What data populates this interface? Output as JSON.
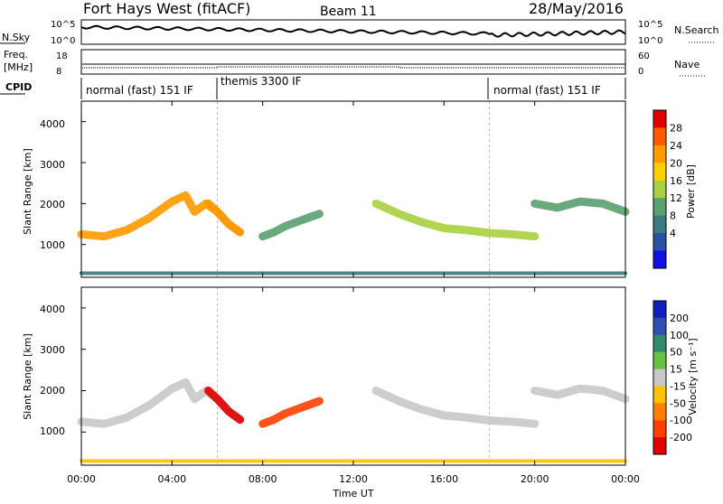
{
  "header": {
    "radar": "Fort Hays West (fitACF)",
    "beam": "Beam 11",
    "date": "28/May/2016"
  },
  "time_axis": {
    "ticks": [
      "00:00",
      "04:00",
      "08:00",
      "12:00",
      "16:00",
      "20:00",
      "00:00"
    ],
    "label": "Time UT"
  },
  "noise_panel": {
    "left_label": "N.Sky",
    "right_label": "N.Search",
    "left_ticks": [
      "10^5",
      "10^0"
    ],
    "right_ticks": [
      "10^5",
      "10^0"
    ]
  },
  "freq_panel": {
    "left_label": "Freq.",
    "left_unit": "[MHz]",
    "left_ticks": [
      "18",
      "8"
    ],
    "right_label": "Nave",
    "right_ticks": [
      "60",
      "0"
    ]
  },
  "cpid": {
    "label": "CPID",
    "segments": [
      "normal (fast) 151 IF",
      "themis 3300 IF",
      "normal (fast) 151 IF"
    ]
  },
  "power_panel": {
    "ylabel": "Slant Range [km]",
    "yticks": [
      "4000",
      "3000",
      "2000",
      "1000"
    ],
    "colorbar_label": "Power [dB]",
    "colorbar_ticks": [
      "28",
      "24",
      "20",
      "16",
      "12",
      "8",
      "4"
    ],
    "colorbar_colors": [
      "#e00000",
      "#ff5a00",
      "#ff9a00",
      "#ffd000",
      "#a8d040",
      "#5aa070",
      "#3a7a80",
      "#2a50a8",
      "#1010e0"
    ]
  },
  "velocity_panel": {
    "ylabel": "Slant Range [km]",
    "yticks": [
      "4000",
      "3000",
      "2000",
      "1000"
    ],
    "colorbar_label": "Velocity [m s⁻¹]",
    "colorbar_ticks": [
      "200",
      "100",
      "50",
      "15",
      "-15",
      "-50",
      "-100",
      "-200"
    ],
    "colorbar_colors": [
      "#1020c0",
      "#3050b0",
      "#2f8a70",
      "#6ac040",
      "#c8c8c8",
      "#ffc000",
      "#ff8000",
      "#ff4000",
      "#e00000"
    ]
  },
  "chart_data": {
    "type": "heatmap",
    "time_range_hours": [
      0,
      24
    ],
    "range_km": [
      200,
      4500
    ],
    "cpid_switch_times": [
      "06:00",
      "18:00"
    ],
    "echo_bands": [
      {
        "name": "ionospheric band 1",
        "t": [
          0,
          1,
          2,
          3,
          4,
          4.6,
          5,
          5.5,
          6,
          6.5,
          7
        ],
        "r": [
          1250,
          1200,
          1350,
          1650,
          2050,
          2200,
          1800,
          2000,
          1800,
          1500,
          1300
        ],
        "power_db": 20,
        "velocity": 0
      },
      {
        "name": "negative velocity patch",
        "t": [
          5.6,
          6,
          6.5,
          7
        ],
        "r": [
          2000,
          1800,
          1500,
          1300
        ],
        "power_db": 22,
        "velocity": -200
      },
      {
        "name": "ionospheric band 2",
        "t": [
          8,
          8.5,
          9,
          9.5,
          10,
          10.5
        ],
        "r": [
          1200,
          1300,
          1450,
          1550,
          1650,
          1750
        ],
        "power_db": 8,
        "velocity": -100
      },
      {
        "name": "ionospheric band 3",
        "t": [
          13,
          14,
          15,
          16,
          17,
          18,
          19,
          20
        ],
        "r": [
          2000,
          1750,
          1550,
          1400,
          1350,
          1280,
          1250,
          1200
        ],
        "power_db": 12,
        "velocity": 0
      },
      {
        "name": "ionospheric band 4",
        "t": [
          20,
          21,
          22,
          23,
          24
        ],
        "r": [
          2000,
          1900,
          2050,
          2000,
          1800
        ],
        "power_db": 10,
        "velocity": 0
      },
      {
        "name": "ground scatter",
        "t": [
          0,
          24
        ],
        "r": [
          300,
          300
        ],
        "power_db": 6,
        "velocity": -30
      }
    ]
  }
}
